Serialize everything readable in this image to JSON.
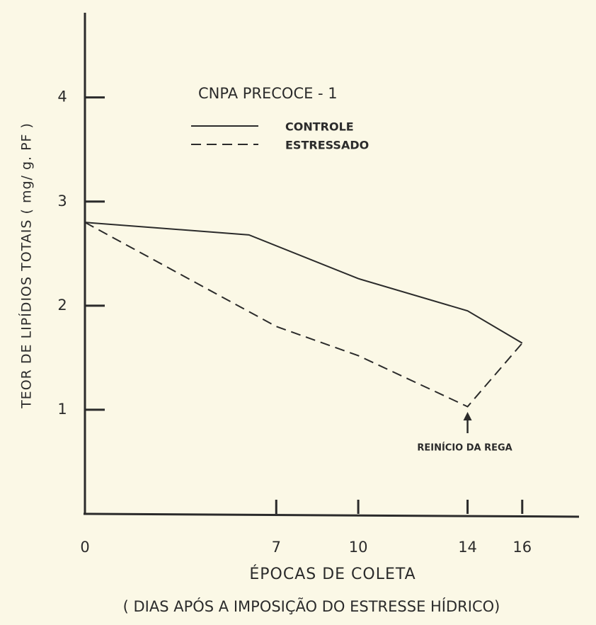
{
  "chart_data": {
    "type": "line",
    "title": "CNPA    PRECOCE - 1",
    "x_label": "ÉPOCAS DE COLETA",
    "x_label_note": "( DIAS APÓS A IMPOSIÇÃO DO ESTRESSE HÍDRICO)",
    "y_label": "TEOR DE LIPÍDIOS TOTAIS  ( mg/ g. PF )",
    "xlim": [
      0,
      18
    ],
    "ylim": [
      0,
      4.8
    ],
    "xticks": [
      0,
      7,
      10,
      14,
      16
    ],
    "yticks": [
      1,
      2,
      3,
      4
    ],
    "series": [
      {
        "name": "CONTROLE",
        "color": "#2b2b2b",
        "dashed": false,
        "x": [
          0,
          6,
          10,
          14,
          16
        ],
        "values": [
          2.8,
          2.68,
          2.26,
          1.95,
          1.64
        ]
      },
      {
        "name": "ESTRESSADO",
        "color": "#2b2b2b",
        "dashed": true,
        "x": [
          0,
          7,
          10,
          14,
          16
        ],
        "values": [
          2.8,
          1.8,
          1.52,
          1.03,
          1.64
        ]
      }
    ],
    "annotation": {
      "text": "REINÍCIO DA REGA",
      "x": 14
    }
  }
}
